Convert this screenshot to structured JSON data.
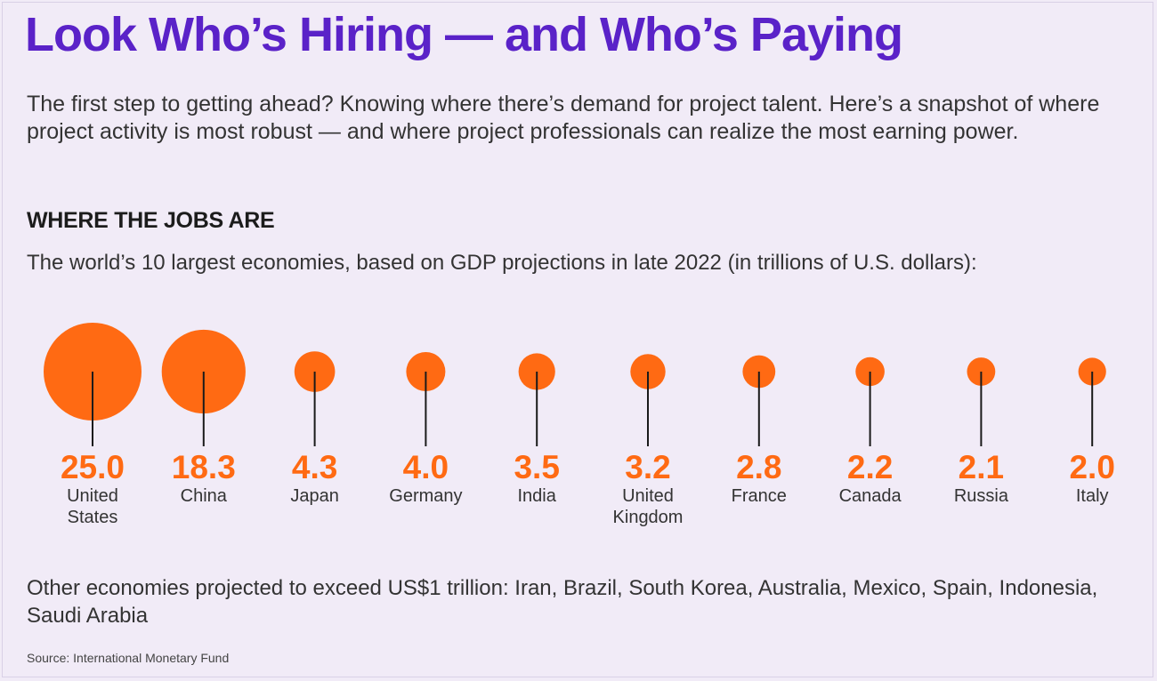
{
  "header": {
    "title": "Look Who’s Hiring — and Who’s Paying",
    "intro": "The first step to getting ahead? Knowing where there’s demand for project talent. Here’s a snapshot of where project activity is most robust — and where project professionals can realize the most earning power."
  },
  "section": {
    "heading": "WHERE THE JOBS ARE",
    "subtitle": "The world’s 10 largest economies, based on GDP projections in late 2022 (in trillions of U.S. dollars):"
  },
  "colors": {
    "accent": "#ff6a13",
    "title": "#5a22c8",
    "background": "#f1ebf7"
  },
  "chart_data": {
    "type": "bubble",
    "title": "The world’s 10 largest economies, based on GDP projections in late 2022 (in trillions of U.S. dollars)",
    "unit": "trillions of U.S. dollars",
    "categories": [
      [
        "United",
        "States"
      ],
      [
        "China"
      ],
      [
        "Japan"
      ],
      [
        "Germany"
      ],
      [
        "India"
      ],
      [
        "United",
        "Kingdom"
      ],
      [
        "France"
      ],
      [
        "Canada"
      ],
      [
        "Russia"
      ],
      [
        "Italy"
      ]
    ],
    "values": [
      25.0,
      18.3,
      4.3,
      4.0,
      3.5,
      3.2,
      2.8,
      2.2,
      2.1,
      2.0
    ],
    "value_labels": [
      "25.0",
      "18.3",
      "4.3",
      "4.0",
      "3.5",
      "3.2",
      "2.8",
      "2.2",
      "2.1",
      "2.0"
    ]
  },
  "footer": {
    "other": "Other economies projected to exceed US$1 trillion: Iran, Brazil, South Korea, Australia, Mexico, Spain, Indonesia, Saudi Arabia",
    "source": "Source: International Monetary Fund"
  }
}
